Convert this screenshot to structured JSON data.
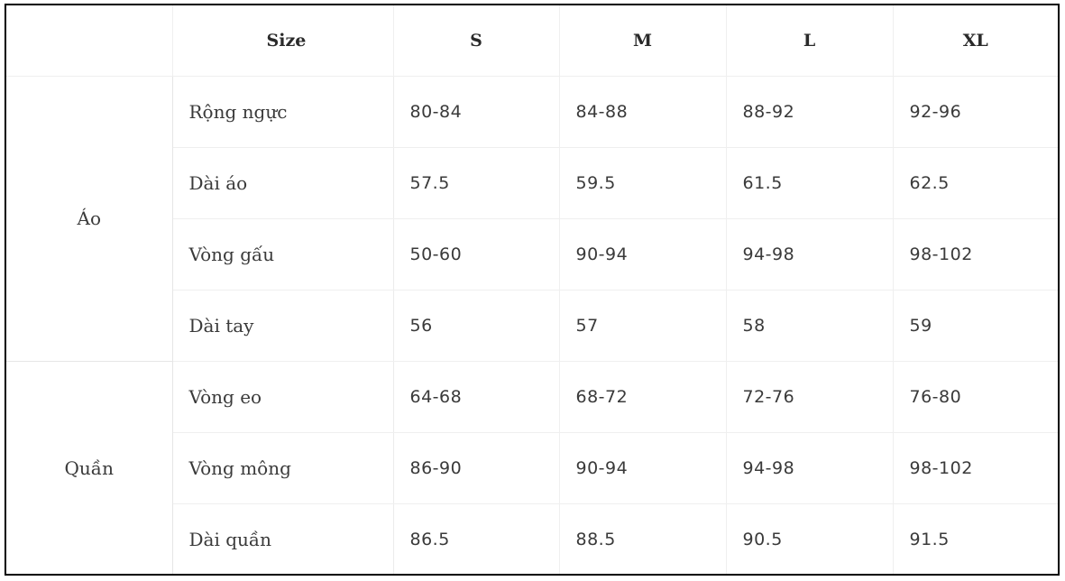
{
  "header": {
    "corner": "",
    "size": "Size",
    "s": "S",
    "m": "M",
    "l": "L",
    "xl": "XL"
  },
  "groups": [
    {
      "name": "Áo",
      "rows": [
        {
          "label": "Rộng ngực",
          "s": "80-84",
          "m": "84-88",
          "l": "88-92",
          "xl": "92-96"
        },
        {
          "label": "Dài áo",
          "s": "57.5",
          "m": "59.5",
          "l": "61.5",
          "xl": "62.5"
        },
        {
          "label": "Vòng gấu",
          "s": "50-60",
          "m": "90-94",
          "l": "94-98",
          "xl": "98-102"
        },
        {
          "label": "Dài tay",
          "s": "56",
          "m": "57",
          "l": "58",
          "xl": "59"
        }
      ]
    },
    {
      "name": "Quần",
      "rows": [
        {
          "label": "Vòng eo",
          "s": "64-68",
          "m": "68-72",
          "l": "72-76",
          "xl": "76-80"
        },
        {
          "label": "Vòng mông",
          "s": "86-90",
          "m": "90-94",
          "l": "94-98",
          "xl": "98-102"
        },
        {
          "label": "Dài quần",
          "s": "86.5",
          "m": "88.5",
          "l": "90.5",
          "xl": "91.5"
        }
      ]
    }
  ]
}
